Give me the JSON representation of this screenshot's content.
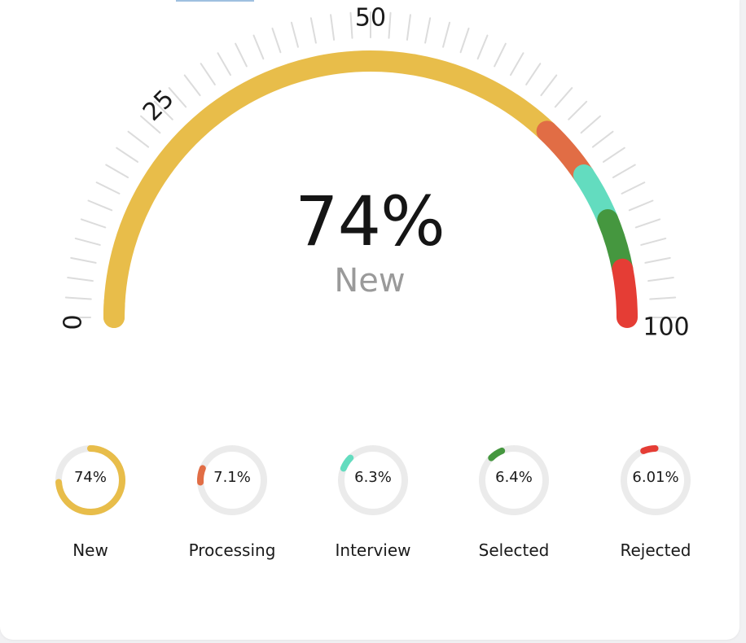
{
  "chart_data": [
    {
      "type": "gauge",
      "title": "",
      "scale": {
        "min": 0,
        "max": 100,
        "tick_labels": [
          "0",
          "25",
          "50",
          "100"
        ]
      },
      "center_value": "74%",
      "center_label": "New",
      "segments": [
        {
          "name": "New",
          "value": 74,
          "color": "#e8bd4a"
        },
        {
          "name": "Processing",
          "value": 7.1,
          "color": "#e16d45"
        },
        {
          "name": "Interview",
          "value": 6.3,
          "color": "#63dcbf"
        },
        {
          "name": "Selected",
          "value": 6.4,
          "color": "#45973f"
        },
        {
          "name": "Rejected",
          "value": 6.01,
          "color": "#e53d35"
        }
      ]
    },
    {
      "type": "donut",
      "items": [
        {
          "name": "New",
          "value": 74,
          "display": "74%",
          "color": "#e8bd4a"
        },
        {
          "name": "Processing",
          "value": 7.1,
          "display": "7.1%",
          "color": "#e16d45"
        },
        {
          "name": "Interview",
          "value": 6.3,
          "display": "6.3%",
          "color": "#63dcbf"
        },
        {
          "name": "Selected",
          "value": 6.4,
          "display": "6.4%",
          "color": "#45973f"
        },
        {
          "name": "Rejected",
          "value": 6.01,
          "display": "6.01%",
          "color": "#e53d35"
        }
      ]
    }
  ],
  "colors": {
    "track": "#ebebeb",
    "tick": "#dcdcdc"
  }
}
